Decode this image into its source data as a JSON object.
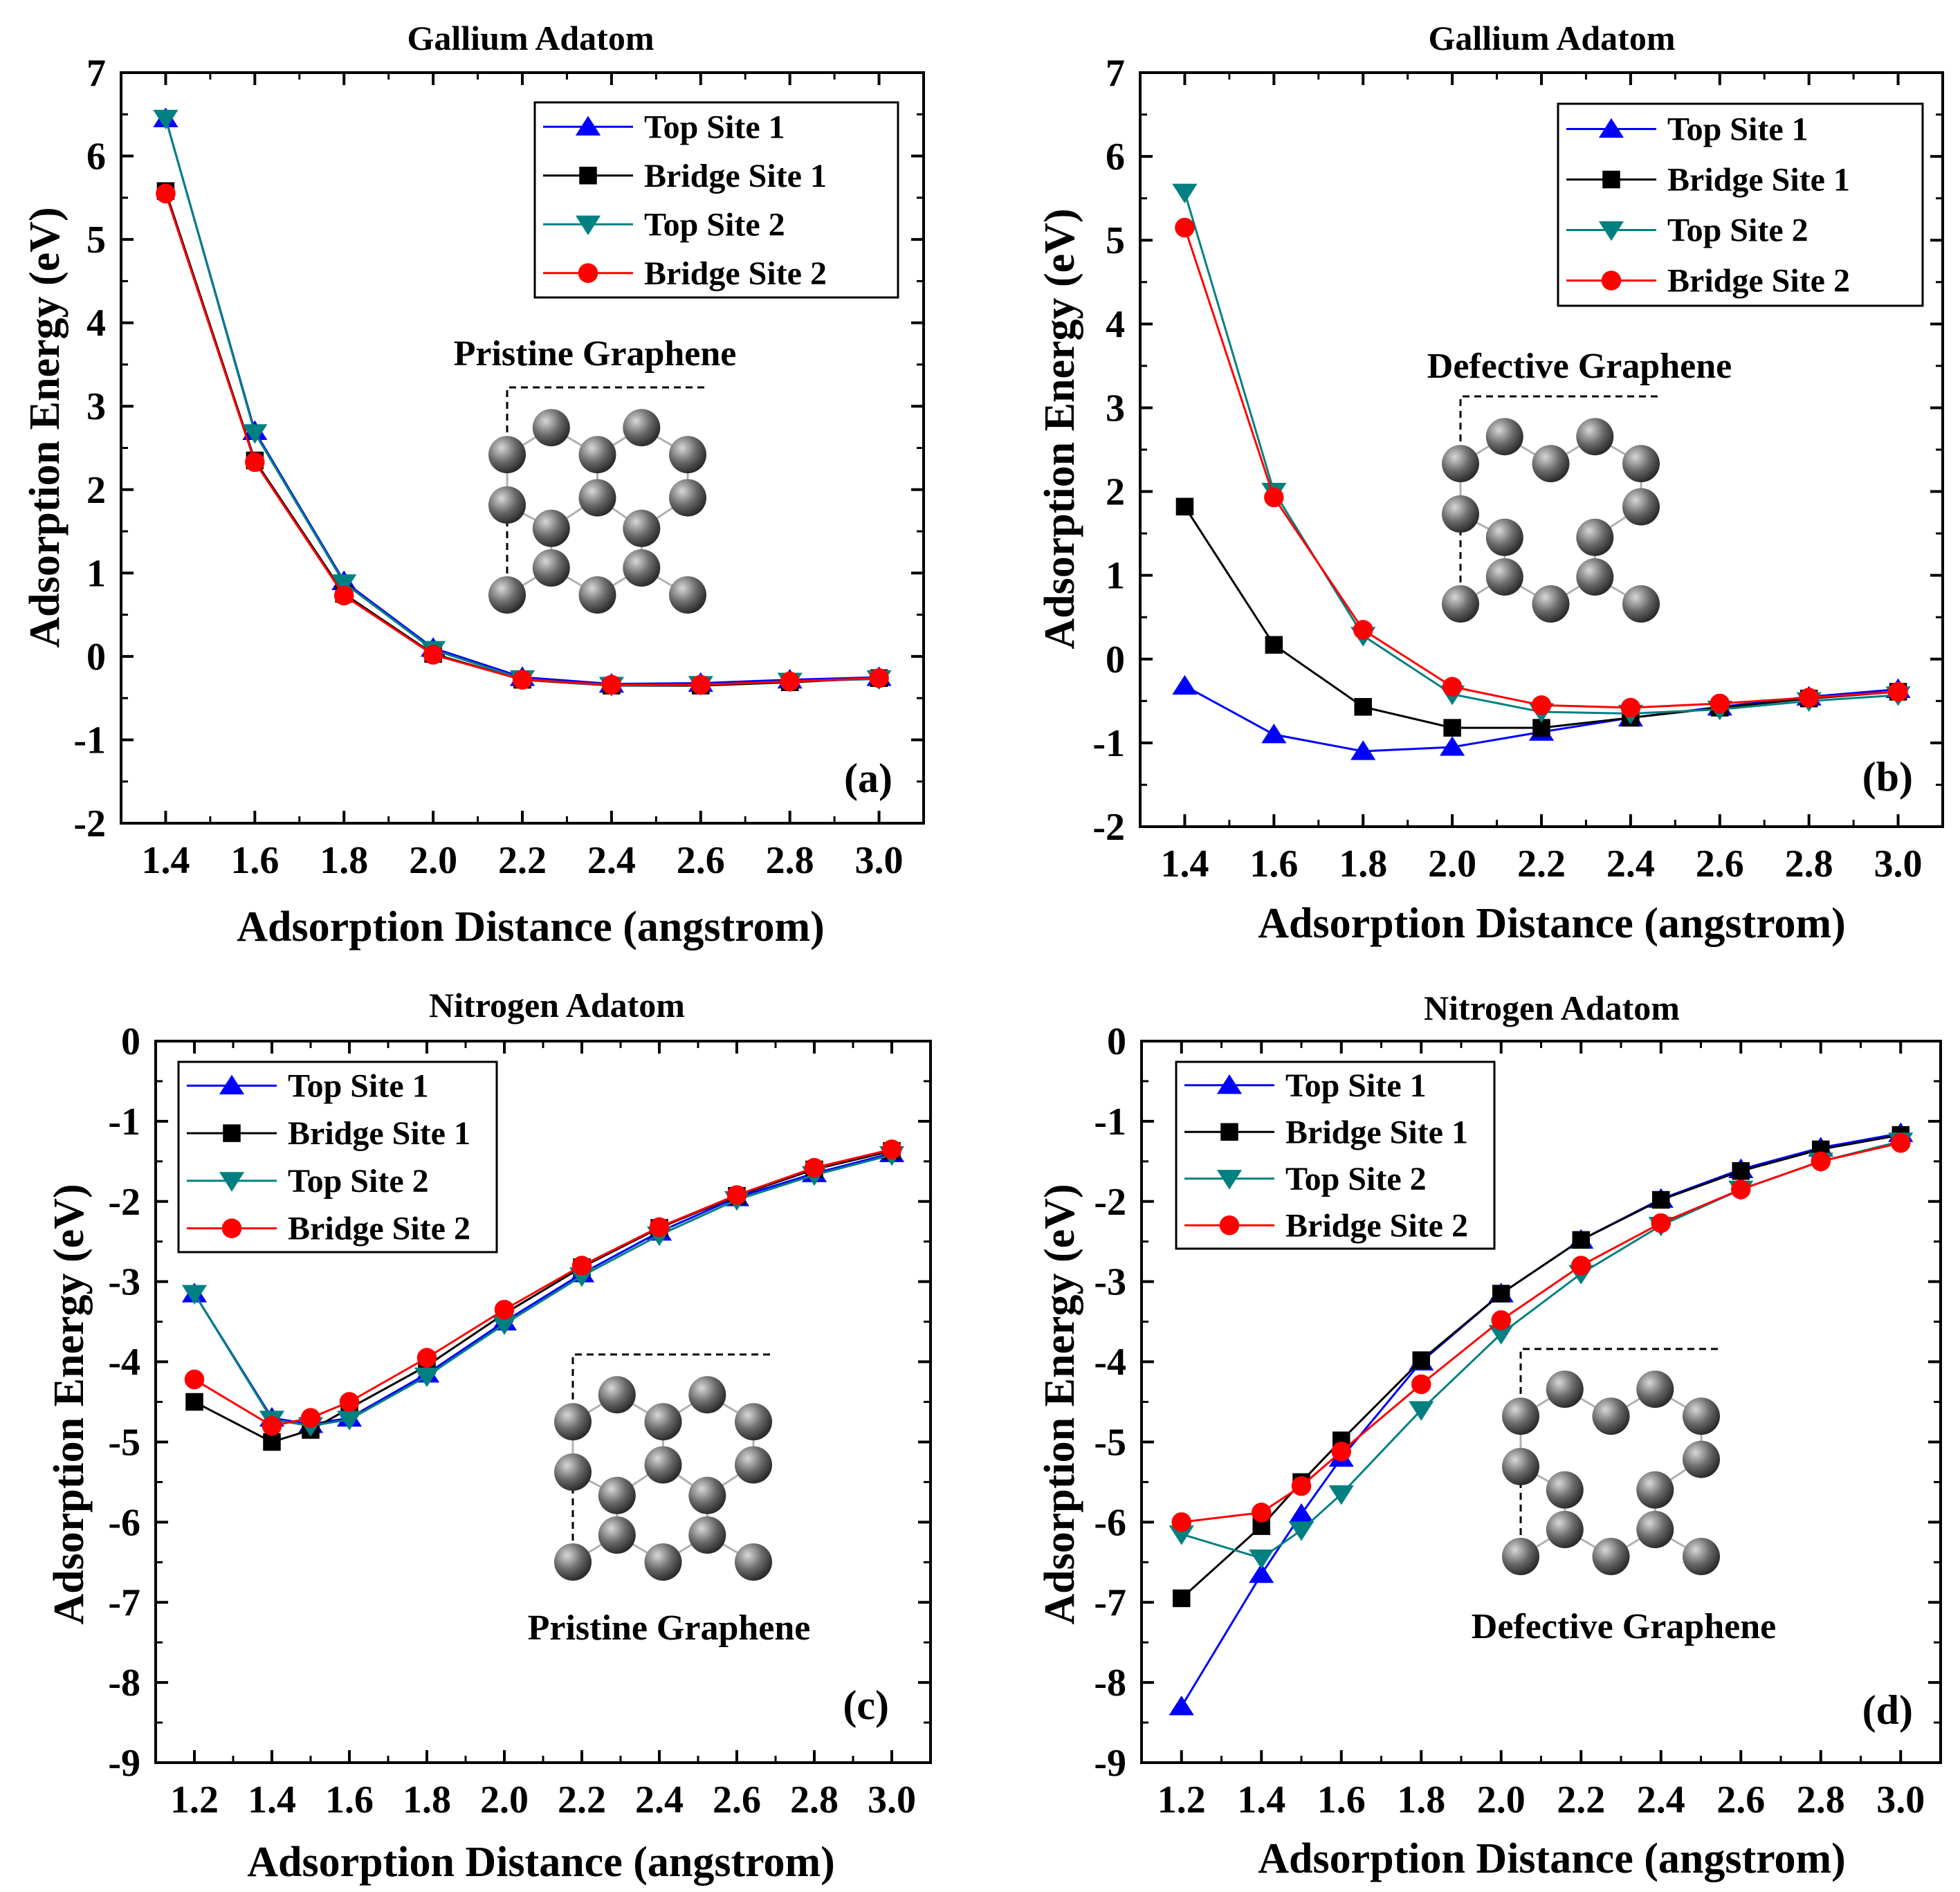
{
  "colors": {
    "top_site_1": "#0000ff",
    "bridge_site_1": "#000000",
    "top_site_2": "#008080",
    "bridge_site_2": "#ff0000"
  },
  "chart_data": [
    {
      "id": "a",
      "type": "line",
      "title": "Gallium Adatom",
      "panel_label": "(a)",
      "inset_label": "Pristine Graphene",
      "inset_lattice": "pristine",
      "xlabel": "Adsorption Distance (angstrom)",
      "ylabel": "Adsorption Energy (eV)",
      "xlim": [
        1.3,
        3.1
      ],
      "ylim": [
        -2,
        7
      ],
      "xticks": [
        "1.4",
        "1.6",
        "1.8",
        "2.0",
        "2.2",
        "2.4",
        "2.6",
        "2.8",
        "3.0"
      ],
      "yticks": [
        "-2",
        "-1",
        "0",
        "1",
        "2",
        "3",
        "4",
        "5",
        "6",
        "7"
      ],
      "legend_position": "top-right",
      "x": [
        1.4,
        1.6,
        1.8,
        2.0,
        2.2,
        2.4,
        2.6,
        2.8,
        3.0
      ],
      "series": [
        {
          "name": "Top Site 1",
          "marker": "triangle-up",
          "color": "#0000ff",
          "values": [
            6.45,
            2.7,
            0.9,
            0.1,
            -0.25,
            -0.33,
            -0.32,
            -0.28,
            -0.25
          ]
        },
        {
          "name": "Bridge Site 1",
          "marker": "square",
          "color": "#000000",
          "values": [
            5.58,
            2.35,
            0.75,
            0.03,
            -0.28,
            -0.35,
            -0.35,
            -0.31,
            -0.26
          ]
        },
        {
          "name": "Top Site 2",
          "marker": "triangle-down",
          "color": "#008080",
          "values": [
            6.45,
            2.68,
            0.88,
            0.08,
            -0.27,
            -0.35,
            -0.34,
            -0.3,
            -0.27
          ]
        },
        {
          "name": "Bridge Site 2",
          "marker": "circle",
          "color": "#ff0000",
          "values": [
            5.55,
            2.33,
            0.73,
            0.02,
            -0.28,
            -0.34,
            -0.34,
            -0.3,
            -0.26
          ]
        }
      ]
    },
    {
      "id": "b",
      "type": "line",
      "title": "Gallium Adatom",
      "panel_label": "(b)",
      "inset_label": "Defective Graphene",
      "inset_lattice": "defective",
      "xlabel": "Adsorption Distance (angstrom)",
      "ylabel": "Adsorption Energy (eV)",
      "xlim": [
        1.3,
        3.1
      ],
      "ylim": [
        -2,
        7
      ],
      "xticks": [
        "1.4",
        "1.6",
        "1.8",
        "2.0",
        "2.2",
        "2.4",
        "2.6",
        "2.8",
        "3.0"
      ],
      "yticks": [
        "-2",
        "-1",
        "0",
        "1",
        "2",
        "3",
        "4",
        "5",
        "6",
        "7"
      ],
      "legend_position": "top-right",
      "x": [
        1.4,
        1.6,
        1.8,
        2.0,
        2.2,
        2.4,
        2.6,
        2.8,
        3.0
      ],
      "series": [
        {
          "name": "Top Site 1",
          "marker": "triangle-up",
          "color": "#0000ff",
          "values": [
            -0.32,
            -0.9,
            -1.1,
            -1.05,
            -0.87,
            -0.7,
            -0.57,
            -0.45,
            -0.36
          ]
        },
        {
          "name": "Bridge Site 1",
          "marker": "square",
          "color": "#000000",
          "values": [
            1.82,
            0.17,
            -0.57,
            -0.82,
            -0.82,
            -0.7,
            -0.58,
            -0.47,
            -0.39
          ]
        },
        {
          "name": "Top Site 2",
          "marker": "triangle-down",
          "color": "#008080",
          "values": [
            5.57,
            2.0,
            0.28,
            -0.42,
            -0.63,
            -0.65,
            -0.6,
            -0.5,
            -0.43
          ]
        },
        {
          "name": "Bridge Site 2",
          "marker": "circle",
          "color": "#ff0000",
          "values": [
            5.15,
            1.93,
            0.35,
            -0.33,
            -0.55,
            -0.58,
            -0.53,
            -0.46,
            -0.39
          ]
        }
      ]
    },
    {
      "id": "c",
      "type": "line",
      "title": "Nitrogen Adatom",
      "panel_label": "(c)",
      "inset_label": "Pristine Graphene",
      "inset_lattice": "pristine",
      "xlabel": "Adsorption Distance (angstrom)",
      "ylabel": "Adsorption Energy (eV)",
      "xlim": [
        1.1,
        3.1
      ],
      "ylim": [
        -9,
        0
      ],
      "xticks": [
        "1.2",
        "1.4",
        "1.6",
        "1.8",
        "2.0",
        "2.2",
        "2.4",
        "2.6",
        "2.8",
        "3.0"
      ],
      "yticks": [
        "-9",
        "-8",
        "-7",
        "-6",
        "-5",
        "-4",
        "-3",
        "-2",
        "-1",
        "0"
      ],
      "legend_position": "top-left",
      "x": [
        1.2,
        1.4,
        1.5,
        1.6,
        1.8,
        2.0,
        2.2,
        2.4,
        2.6,
        2.8,
        3.0
      ],
      "series": [
        {
          "name": "Top Site 1",
          "marker": "triangle-up",
          "color": "#0000ff",
          "values": [
            -3.15,
            -4.7,
            -4.78,
            -4.7,
            -4.15,
            -3.5,
            -2.9,
            -2.38,
            -1.95,
            -1.65,
            -1.4
          ]
        },
        {
          "name": "Bridge Site 1",
          "marker": "square",
          "color": "#000000",
          "values": [
            -4.5,
            -5.0,
            -4.85,
            -4.58,
            -4.05,
            -3.4,
            -2.82,
            -2.33,
            -1.93,
            -1.6,
            -1.37
          ]
        },
        {
          "name": "Top Site 2",
          "marker": "triangle-down",
          "color": "#008080",
          "values": [
            -3.15,
            -4.72,
            -4.8,
            -4.72,
            -4.18,
            -3.53,
            -2.93,
            -2.42,
            -1.98,
            -1.67,
            -1.42
          ]
        },
        {
          "name": "Bridge Site 2",
          "marker": "circle",
          "color": "#ff0000",
          "values": [
            -4.22,
            -4.8,
            -4.7,
            -4.5,
            -3.95,
            -3.35,
            -2.8,
            -2.32,
            -1.92,
            -1.58,
            -1.35
          ]
        }
      ]
    },
    {
      "id": "d",
      "type": "line",
      "title": "Nitrogen Adatom",
      "panel_label": "(d)",
      "inset_label": "Defective Graphene",
      "inset_lattice": "defective",
      "xlabel": "Adsorption Distance (angstrom)",
      "ylabel": "Adsorption Energy (eV)",
      "xlim": [
        1.1,
        3.1
      ],
      "ylim": [
        -9,
        0
      ],
      "xticks": [
        "1.2",
        "1.4",
        "1.6",
        "1.8",
        "2.0",
        "2.2",
        "2.4",
        "2.6",
        "2.8",
        "3.0"
      ],
      "yticks": [
        "-9",
        "-8",
        "-7",
        "-6",
        "-5",
        "-4",
        "-3",
        "-2",
        "-1",
        "0"
      ],
      "legend_position": "top-left",
      "x": [
        1.2,
        1.4,
        1.5,
        1.6,
        1.8,
        2.0,
        2.2,
        2.4,
        2.6,
        2.8,
        3.0
      ],
      "series": [
        {
          "name": "Top Site 1",
          "marker": "triangle-up",
          "color": "#0000ff",
          "values": [
            -8.3,
            -6.65,
            -5.9,
            -5.2,
            -4.0,
            -3.15,
            -2.48,
            -1.97,
            -1.6,
            -1.33,
            -1.15
          ]
        },
        {
          "name": "Bridge Site 1",
          "marker": "square",
          "color": "#000000",
          "values": [
            -6.95,
            -6.05,
            -5.5,
            -4.98,
            -3.98,
            -3.15,
            -2.48,
            -1.98,
            -1.62,
            -1.35,
            -1.17
          ]
        },
        {
          "name": "Top Site 2",
          "marker": "triangle-down",
          "color": "#008080",
          "values": [
            -6.15,
            -6.45,
            -6.1,
            -5.65,
            -4.6,
            -3.65,
            -2.9,
            -2.3,
            -1.85,
            -1.5,
            -1.25
          ]
        },
        {
          "name": "Bridge Site 2",
          "marker": "circle",
          "color": "#ff0000",
          "values": [
            -6.0,
            -5.88,
            -5.55,
            -5.12,
            -4.28,
            -3.48,
            -2.8,
            -2.27,
            -1.85,
            -1.5,
            -1.27
          ]
        }
      ]
    }
  ]
}
